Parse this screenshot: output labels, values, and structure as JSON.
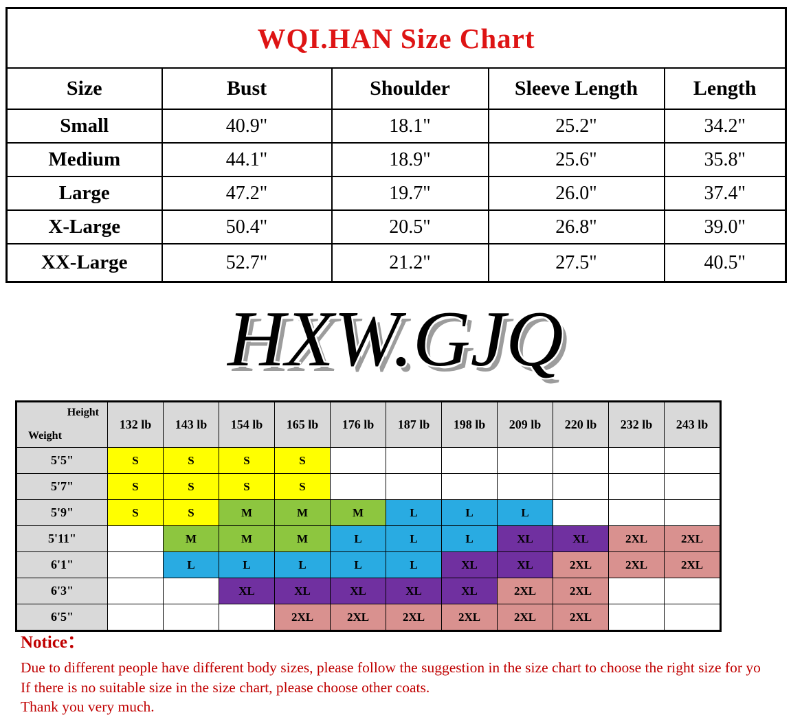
{
  "colors": {
    "title_red": "#DE1414",
    "notice_red": "#C00000",
    "header_gray": "#D9D9D9",
    "size_S": "#FFFF00",
    "size_M": "#8DC63F",
    "size_L": "#29ABE2",
    "size_XL": "#7030A0",
    "size_2XL": "#D9918F"
  },
  "size_chart": {
    "title": "WQI.HAN Size Chart",
    "columns": [
      "Size",
      "Bust",
      "Shoulder",
      "Sleeve Length",
      "Length"
    ],
    "rows": [
      {
        "size": "Small",
        "values": [
          "40.9\"",
          "18.1\"",
          "25.2\"",
          "34.2\""
        ]
      },
      {
        "size": "Medium",
        "values": [
          "44.1\"",
          "18.9\"",
          "25.6\"",
          "35.8\""
        ]
      },
      {
        "size": "Large",
        "values": [
          "47.2\"",
          "19.7\"",
          "26.0\"",
          "37.4\""
        ]
      },
      {
        "size": "X-Large",
        "values": [
          "50.4\"",
          "20.5\"",
          "26.8\"",
          "39.0\""
        ]
      },
      {
        "size": "XX-Large",
        "values": [
          "52.7\"",
          "21.2\"",
          "27.5\"",
          "40.5\""
        ]
      }
    ]
  },
  "brand": "HXW.GJQ",
  "fit_chart": {
    "corner_top_label": "Height",
    "corner_bottom_label": "Weight",
    "weight_headers": [
      "132 lb",
      "143 lb",
      "154 lb",
      "165 lb",
      "176 lb",
      "187 lb",
      "198 lb",
      "209 lb",
      "220 lb",
      "232 lb",
      "243 lb"
    ],
    "height_headers": [
      "5'5\"",
      "5'7\"",
      "5'9\"",
      "5'11\"",
      "6'1\"",
      "6'3\"",
      "6'5\""
    ],
    "cells": [
      [
        "S",
        "S",
        "S",
        "S",
        "",
        "",
        "",
        "",
        "",
        "",
        ""
      ],
      [
        "S",
        "S",
        "S",
        "S",
        "",
        "",
        "",
        "",
        "",
        "",
        ""
      ],
      [
        "S",
        "S",
        "M",
        "M",
        "M",
        "L",
        "L",
        "L",
        "",
        "",
        ""
      ],
      [
        "",
        "M",
        "M",
        "M",
        "L",
        "L",
        "L",
        "XL",
        "XL",
        "2XL",
        "2XL"
      ],
      [
        "",
        "L",
        "L",
        "L",
        "L",
        "L",
        "XL",
        "XL",
        "2XL",
        "2XL",
        "2XL"
      ],
      [
        "",
        "",
        "XL",
        "XL",
        "XL",
        "XL",
        "XL",
        "2XL",
        "2XL",
        "",
        ""
      ],
      [
        "",
        "",
        "",
        "2XL",
        "2XL",
        "2XL",
        "2XL",
        "2XL",
        "2XL",
        "",
        ""
      ]
    ]
  },
  "notice": {
    "heading": "Notice：",
    "lines": [
      "Due to different people have different body sizes, please follow the suggestion in the size chart to choose the right size for yo",
      "If there is no suitable size in the size chart, please choose other coats.",
      "Thank you very much."
    ]
  }
}
